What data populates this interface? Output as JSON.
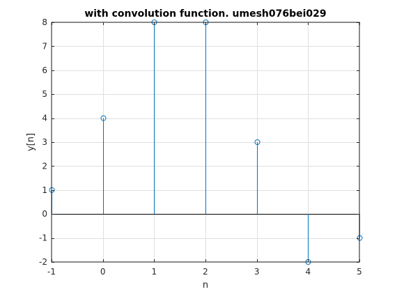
{
  "chart_data": {
    "type": "stem",
    "title": "with convolution function. umesh076bei029",
    "xlabel": "n",
    "ylabel": "y[n]",
    "x": [
      -1,
      0,
      1,
      2,
      3,
      4,
      5
    ],
    "y": [
      1,
      4,
      8,
      8,
      3,
      -2,
      -1
    ],
    "xlim": [
      -1,
      5
    ],
    "ylim": [
      -2,
      8
    ],
    "xticks": [
      -1,
      0,
      1,
      2,
      3,
      4,
      5
    ],
    "yticks": [
      -2,
      -1,
      0,
      1,
      2,
      3,
      4,
      5,
      6,
      7,
      8
    ],
    "grid": true,
    "baseline": 0,
    "colors": {
      "stem": "#0072BD",
      "grid": "#dfdfdf",
      "axis": "#262626",
      "baseline": "#000000"
    }
  }
}
